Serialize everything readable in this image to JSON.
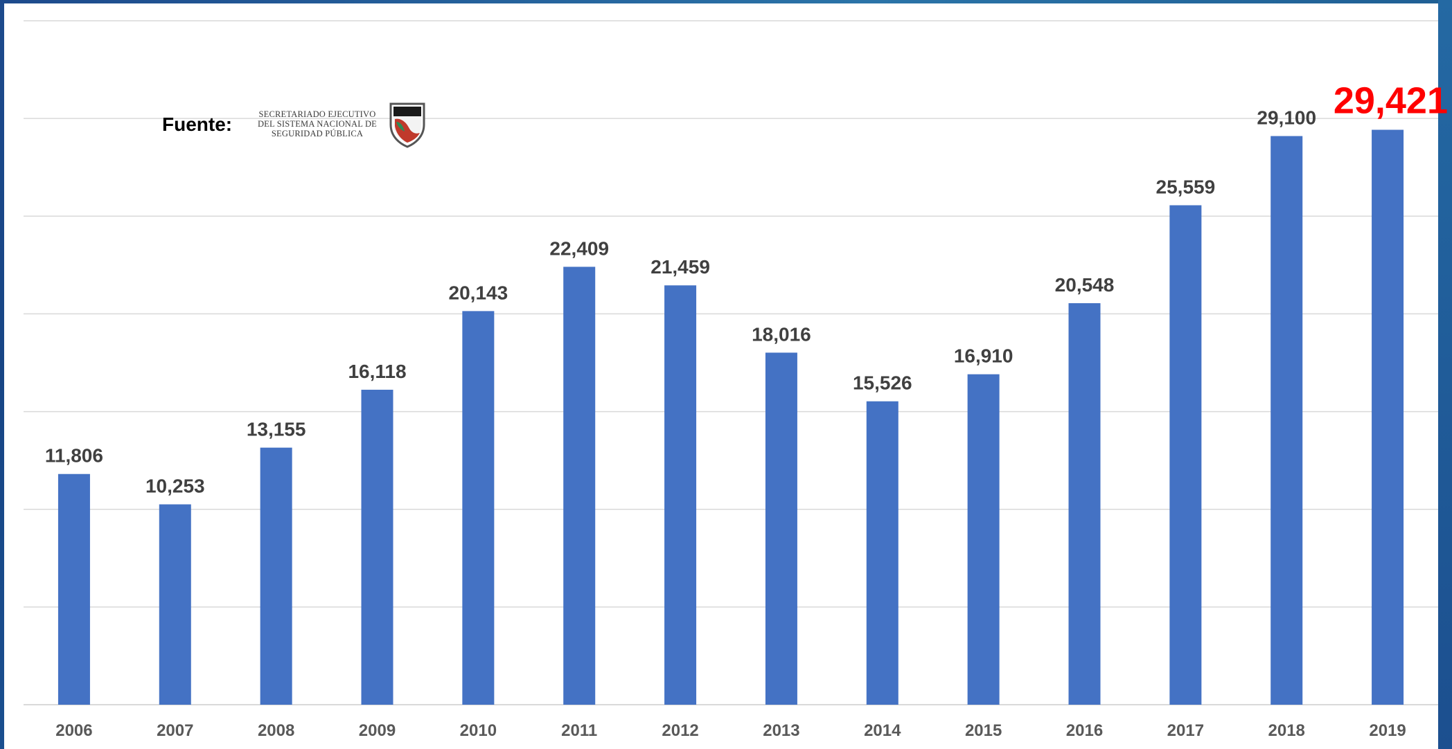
{
  "source": {
    "label": "Fuente:",
    "organization": "SECRETARIADO EJECUTIVO DEL SISTEMA NACIONAL DE SEGURIDAD PÚBLICA",
    "logo_text": "SISTEMA NACIONAL DE SEGURIDAD PÚBLICA"
  },
  "colors": {
    "bar": "#4472c4",
    "label": "#404040",
    "highlight": "#ff0000",
    "grid": "#d9d9d9",
    "frame": "#1d4a8c"
  },
  "chart_data": {
    "type": "bar",
    "categories": [
      "2006",
      "2007",
      "2008",
      "2009",
      "2010",
      "2011",
      "2012",
      "2013",
      "2014",
      "2015",
      "2016",
      "2017",
      "2018",
      "2019"
    ],
    "values": [
      11806,
      10253,
      13155,
      16118,
      20143,
      22409,
      21459,
      18016,
      15526,
      16910,
      20548,
      25559,
      29100,
      29421
    ],
    "data_labels": [
      "11,806",
      "10,253",
      "13,155",
      "16,118",
      "20,143",
      "22,409",
      "21,459",
      "18,016",
      "15,526",
      "16,910",
      "20,548",
      "25,559",
      "29,100",
      "29,421"
    ],
    "highlight_index": 13,
    "title": "",
    "xlabel": "",
    "ylabel": "",
    "ylim": [
      0,
      35000
    ],
    "grid": true,
    "y_tick_labels_shown": false
  }
}
